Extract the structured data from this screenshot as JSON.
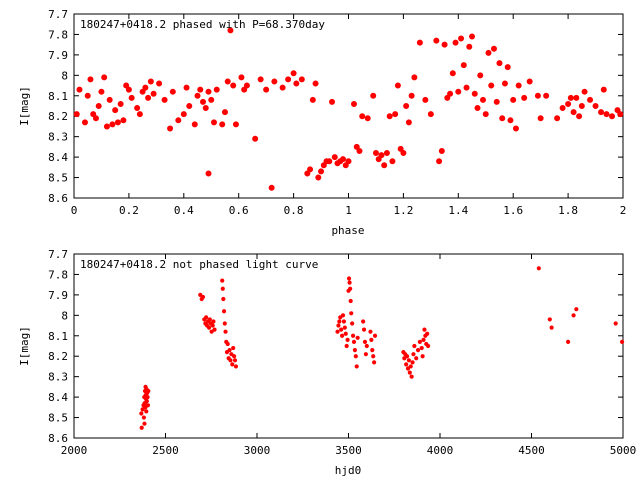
{
  "marker_color": "#ff0000",
  "chart_data": [
    {
      "type": "scatter",
      "title": "180247+0418.2 phased with P=68.370day",
      "xlabel": "phase",
      "ylabel": "I[mag]",
      "xlim": [
        0,
        2
      ],
      "ylim": [
        7.7,
        8.6
      ],
      "y_inverted": true,
      "grid": false,
      "x_ticks": [
        "0",
        "0.2",
        "0.4",
        "0.6",
        "0.8",
        "1",
        "1.2",
        "1.4",
        "1.6",
        "1.8",
        "2"
      ],
      "y_ticks": [
        "7.7",
        "7.8",
        "7.9",
        "8",
        "8.1",
        "8.2",
        "8.3",
        "8.4",
        "8.5",
        "8.6"
      ],
      "points": [
        [
          0.01,
          8.19
        ],
        [
          0.02,
          8.07
        ],
        [
          0.04,
          8.23
        ],
        [
          0.05,
          8.1
        ],
        [
          0.06,
          8.02
        ],
        [
          0.07,
          8.19
        ],
        [
          0.08,
          8.21
        ],
        [
          0.09,
          8.15
        ],
        [
          0.1,
          8.08
        ],
        [
          0.11,
          8.01
        ],
        [
          0.12,
          8.25
        ],
        [
          0.13,
          8.12
        ],
        [
          0.14,
          8.24
        ],
        [
          0.15,
          8.17
        ],
        [
          0.16,
          8.23
        ],
        [
          0.17,
          8.14
        ],
        [
          0.18,
          8.22
        ],
        [
          0.19,
          8.05
        ],
        [
          0.2,
          8.07
        ],
        [
          0.21,
          8.11
        ],
        [
          0.23,
          8.16
        ],
        [
          0.24,
          8.19
        ],
        [
          0.25,
          8.08
        ],
        [
          0.26,
          8.06
        ],
        [
          0.27,
          8.11
        ],
        [
          0.28,
          8.03
        ],
        [
          0.29,
          8.09
        ],
        [
          0.31,
          8.04
        ],
        [
          0.33,
          8.12
        ],
        [
          0.35,
          8.26
        ],
        [
          0.36,
          8.08
        ],
        [
          0.38,
          8.22
        ],
        [
          0.4,
          8.19
        ],
        [
          0.41,
          8.06
        ],
        [
          0.42,
          8.15
        ],
        [
          0.44,
          8.24
        ],
        [
          0.45,
          8.1
        ],
        [
          0.46,
          8.07
        ],
        [
          0.47,
          8.13
        ],
        [
          0.48,
          8.16
        ],
        [
          0.49,
          8.08
        ],
        [
          0.5,
          8.12
        ],
        [
          0.51,
          8.23
        ],
        [
          0.52,
          8.07
        ],
        [
          0.54,
          8.24
        ],
        [
          0.55,
          8.18
        ],
        [
          0.56,
          8.03
        ],
        [
          0.57,
          7.78
        ],
        [
          0.58,
          8.05
        ],
        [
          0.59,
          8.24
        ],
        [
          0.61,
          8.01
        ],
        [
          0.62,
          8.07
        ],
        [
          0.63,
          8.05
        ],
        [
          0.66,
          8.31
        ],
        [
          0.68,
          8.02
        ],
        [
          0.7,
          8.07
        ],
        [
          0.72,
          8.55
        ],
        [
          0.73,
          8.03
        ],
        [
          0.76,
          8.06
        ],
        [
          0.78,
          8.02
        ],
        [
          0.8,
          7.99
        ],
        [
          0.81,
          8.04
        ],
        [
          0.83,
          8.02
        ],
        [
          0.85,
          8.48
        ],
        [
          0.86,
          8.46
        ],
        [
          0.87,
          8.12
        ],
        [
          0.88,
          8.04
        ],
        [
          0.89,
          8.5
        ],
        [
          0.9,
          8.47
        ],
        [
          0.91,
          8.44
        ],
        [
          0.92,
          8.42
        ],
        [
          0.93,
          8.42
        ],
        [
          0.94,
          8.13
        ],
        [
          0.95,
          8.4
        ],
        [
          0.96,
          8.43
        ],
        [
          0.97,
          8.42
        ],
        [
          0.98,
          8.41
        ],
        [
          0.99,
          8.44
        ],
        [
          1.0,
          8.42
        ],
        [
          0.49,
          8.48
        ],
        [
          1.02,
          8.14
        ],
        [
          1.03,
          8.35
        ],
        [
          1.04,
          8.37
        ],
        [
          1.05,
          8.2
        ],
        [
          1.07,
          8.21
        ],
        [
          1.09,
          8.1
        ],
        [
          1.1,
          8.38
        ],
        [
          1.11,
          8.41
        ],
        [
          1.12,
          8.39
        ],
        [
          1.13,
          8.44
        ],
        [
          1.14,
          8.38
        ],
        [
          1.15,
          8.2
        ],
        [
          1.16,
          8.42
        ],
        [
          1.17,
          8.19
        ],
        [
          1.18,
          8.05
        ],
        [
          1.19,
          8.36
        ],
        [
          1.2,
          8.38
        ],
        [
          1.21,
          8.15
        ],
        [
          1.22,
          8.23
        ],
        [
          1.23,
          8.1
        ],
        [
          1.24,
          8.01
        ],
        [
          1.26,
          7.84
        ],
        [
          1.28,
          8.12
        ],
        [
          1.3,
          8.19
        ],
        [
          1.32,
          7.83
        ],
        [
          1.33,
          8.42
        ],
        [
          1.34,
          8.37
        ],
        [
          1.35,
          7.85
        ],
        [
          1.36,
          8.11
        ],
        [
          1.37,
          8.09
        ],
        [
          1.38,
          7.99
        ],
        [
          1.39,
          7.84
        ],
        [
          1.4,
          8.08
        ],
        [
          1.41,
          7.82
        ],
        [
          1.42,
          7.95
        ],
        [
          1.43,
          8.06
        ],
        [
          1.44,
          7.86
        ],
        [
          1.45,
          7.81
        ],
        [
          1.46,
          8.09
        ],
        [
          1.47,
          8.16
        ],
        [
          1.48,
          8.0
        ],
        [
          1.49,
          8.12
        ],
        [
          1.5,
          8.19
        ],
        [
          1.51,
          7.89
        ],
        [
          1.52,
          8.05
        ],
        [
          1.53,
          7.87
        ],
        [
          1.54,
          8.13
        ],
        [
          1.55,
          7.94
        ],
        [
          1.56,
          8.21
        ],
        [
          1.57,
          8.04
        ],
        [
          1.58,
          7.96
        ],
        [
          1.59,
          8.22
        ],
        [
          1.6,
          8.12
        ],
        [
          1.61,
          8.26
        ],
        [
          1.62,
          8.05
        ],
        [
          1.64,
          8.11
        ],
        [
          1.66,
          8.03
        ],
        [
          1.69,
          8.1
        ],
        [
          1.7,
          8.21
        ],
        [
          1.72,
          8.1
        ],
        [
          1.76,
          8.21
        ],
        [
          1.78,
          8.16
        ],
        [
          1.8,
          8.14
        ],
        [
          1.81,
          8.11
        ],
        [
          1.82,
          8.18
        ],
        [
          1.83,
          8.11
        ],
        [
          1.84,
          8.2
        ],
        [
          1.85,
          8.15
        ],
        [
          1.86,
          8.08
        ],
        [
          1.88,
          8.12
        ],
        [
          1.9,
          8.15
        ],
        [
          1.92,
          8.18
        ],
        [
          1.93,
          8.07
        ],
        [
          1.94,
          8.19
        ],
        [
          1.96,
          8.2
        ],
        [
          1.98,
          8.17
        ],
        [
          1.99,
          8.19
        ]
      ]
    },
    {
      "type": "scatter",
      "title": "180247+0418.2 not phased light curve",
      "xlabel": "hjd0",
      "ylabel": "I[mag]",
      "xlim": [
        2000,
        5000
      ],
      "ylim": [
        7.7,
        8.6
      ],
      "y_inverted": true,
      "grid": false,
      "x_ticks": [
        "2000",
        "2500",
        "3000",
        "3500",
        "4000",
        "4500",
        "5000"
      ],
      "y_ticks": [
        "7.7",
        "7.8",
        "7.9",
        "8",
        "8.1",
        "8.2",
        "8.3",
        "8.4",
        "8.5",
        "8.6"
      ],
      "points": [
        [
          2368,
          8.48
        ],
        [
          2370,
          8.55
        ],
        [
          2375,
          8.46
        ],
        [
          2380,
          8.44
        ],
        [
          2382,
          8.5
        ],
        [
          2384,
          8.4
        ],
        [
          2386,
          8.43
        ],
        [
          2388,
          8.37
        ],
        [
          2390,
          8.45
        ],
        [
          2392,
          8.39
        ],
        [
          2394,
          8.41
        ],
        [
          2396,
          8.36
        ],
        [
          2398,
          8.42
        ],
        [
          2400,
          8.38
        ],
        [
          2402,
          8.4
        ],
        [
          2404,
          8.44
        ],
        [
          2406,
          8.37
        ],
        [
          2395,
          8.47
        ],
        [
          2385,
          8.53
        ],
        [
          2391,
          8.35
        ],
        [
          2690,
          7.9
        ],
        [
          2698,
          7.92
        ],
        [
          2705,
          7.91
        ],
        [
          2712,
          8.02
        ],
        [
          2718,
          8.04
        ],
        [
          2722,
          8.01
        ],
        [
          2727,
          8.05
        ],
        [
          2732,
          8.03
        ],
        [
          2738,
          8.06
        ],
        [
          2742,
          8.02
        ],
        [
          2748,
          8.04
        ],
        [
          2752,
          8.08
        ],
        [
          2758,
          8.05
        ],
        [
          2762,
          8.03
        ],
        [
          2768,
          8.07
        ],
        [
          2810,
          7.83
        ],
        [
          2813,
          7.87
        ],
        [
          2816,
          7.92
        ],
        [
          2820,
          7.98
        ],
        [
          2824,
          8.04
        ],
        [
          2828,
          8.08
        ],
        [
          2832,
          8.13
        ],
        [
          2836,
          8.18
        ],
        [
          2840,
          8.14
        ],
        [
          2845,
          8.21
        ],
        [
          2850,
          8.17
        ],
        [
          2855,
          8.22
        ],
        [
          2860,
          8.19
        ],
        [
          2865,
          8.24
        ],
        [
          2870,
          8.16
        ],
        [
          2875,
          8.2
        ],
        [
          2880,
          8.22
        ],
        [
          2885,
          8.25
        ],
        [
          3440,
          8.08
        ],
        [
          3445,
          8.05
        ],
        [
          3450,
          8.03
        ],
        [
          3455,
          8.01
        ],
        [
          3460,
          8.07
        ],
        [
          3465,
          8.1
        ],
        [
          3470,
          8.0
        ],
        [
          3475,
          8.03
        ],
        [
          3480,
          8.06
        ],
        [
          3485,
          8.09
        ],
        [
          3490,
          8.15
        ],
        [
          3495,
          8.12
        ],
        [
          3500,
          7.88
        ],
        [
          3503,
          7.82
        ],
        [
          3506,
          7.84
        ],
        [
          3509,
          7.87
        ],
        [
          3512,
          7.93
        ],
        [
          3515,
          7.99
        ],
        [
          3520,
          8.04
        ],
        [
          3525,
          8.1
        ],
        [
          3530,
          8.13
        ],
        [
          3535,
          8.17
        ],
        [
          3540,
          8.2
        ],
        [
          3545,
          8.25
        ],
        [
          3550,
          8.11
        ],
        [
          3580,
          8.03
        ],
        [
          3585,
          8.07
        ],
        [
          3590,
          8.13
        ],
        [
          3595,
          8.19
        ],
        [
          3600,
          8.15
        ],
        [
          3620,
          8.08
        ],
        [
          3625,
          8.12
        ],
        [
          3630,
          8.17
        ],
        [
          3635,
          8.2
        ],
        [
          3640,
          8.23
        ],
        [
          3645,
          8.1
        ],
        [
          3800,
          8.18
        ],
        [
          3805,
          8.21
        ],
        [
          3810,
          8.19
        ],
        [
          3815,
          8.24
        ],
        [
          3820,
          8.2
        ],
        [
          3825,
          8.26
        ],
        [
          3830,
          8.22
        ],
        [
          3835,
          8.28
        ],
        [
          3840,
          8.25
        ],
        [
          3845,
          8.3
        ],
        [
          3850,
          8.23
        ],
        [
          3855,
          8.19
        ],
        [
          3860,
          8.15
        ],
        [
          3870,
          8.21
        ],
        [
          3880,
          8.17
        ],
        [
          3890,
          8.13
        ],
        [
          3900,
          8.16
        ],
        [
          3910,
          8.12
        ],
        [
          3915,
          8.07
        ],
        [
          3920,
          8.1
        ],
        [
          3925,
          8.14
        ],
        [
          3930,
          8.09
        ],
        [
          3935,
          8.15
        ],
        [
          3905,
          8.2
        ],
        [
          4540,
          7.77
        ],
        [
          4600,
          8.02
        ],
        [
          4610,
          8.06
        ],
        [
          4700,
          8.13
        ],
        [
          4730,
          8.0
        ],
        [
          4745,
          7.97
        ],
        [
          4960,
          8.04
        ],
        [
          4995,
          8.13
        ]
      ]
    }
  ]
}
